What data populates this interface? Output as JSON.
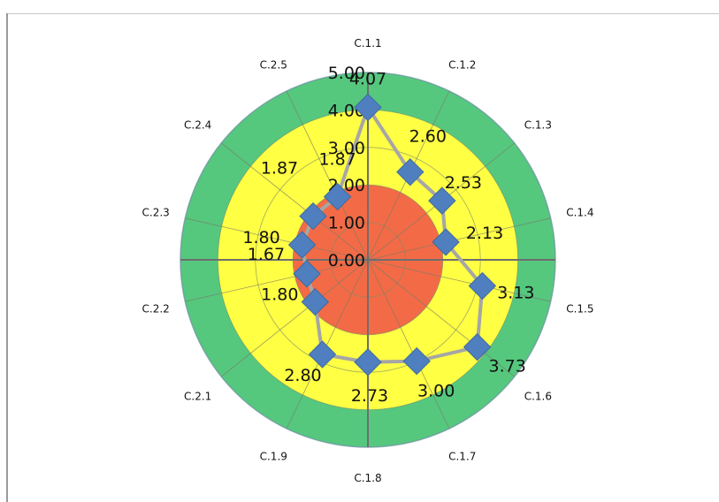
{
  "chart_data": {
    "type": "radar",
    "title": "",
    "categories": [
      "C.1.1",
      "C.1.2",
      "C.1.3",
      "C.1.4",
      "C.1.5",
      "C.1.6",
      "C.1.7",
      "C.1.8",
      "C.1.9",
      "C.2.1",
      "C.2.2",
      "C.2.3",
      "C.2.4",
      "C.2.5"
    ],
    "values": [
      4.07,
      2.6,
      2.53,
      2.13,
      3.13,
      3.73,
      3.0,
      2.73,
      2.8,
      1.8,
      1.67,
      1.8,
      1.87,
      1.87
    ],
    "value_labels": [
      "4.07",
      "2.60",
      "2.53",
      "2.13",
      "3.13",
      "3.73",
      "3.00",
      "2.73",
      "2.80",
      "1.80",
      "1.67",
      "1.80",
      "1.87",
      "1.87"
    ],
    "axis_ticks": [
      "0.00",
      "1.00",
      "2.00",
      "3.00",
      "4.00",
      "5.00"
    ],
    "rlim": [
      0,
      5
    ],
    "bands": [
      {
        "from": 0,
        "to": 2,
        "color": "#f26b46"
      },
      {
        "from": 2,
        "to": 4,
        "color": "#ffff44"
      },
      {
        "from": 4,
        "to": 5,
        "color": "#55c87e"
      }
    ],
    "series_color": "#4f7fbe",
    "line_color": "#a6a6a6",
    "grid": true
  }
}
